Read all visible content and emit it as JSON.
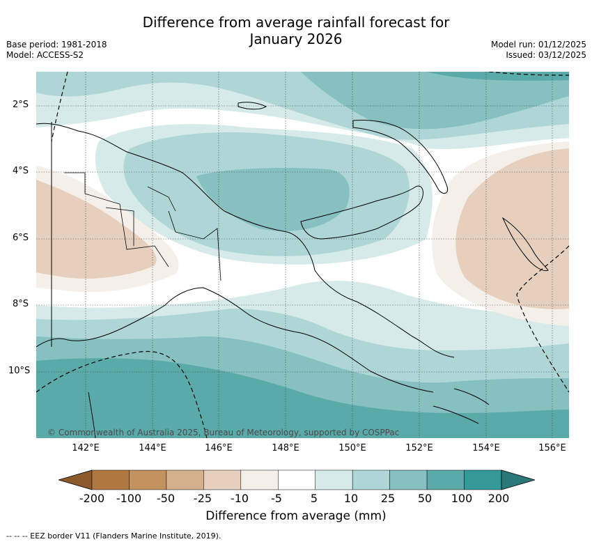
{
  "title": "Difference from average rainfall forecast for January 2026",
  "title_line1": "Difference from average rainfall forecast for",
  "title_line2": "January 2026",
  "meta_left": {
    "base_period": "Base period: 1981-2018",
    "model": "Model: ACCESS-S2"
  },
  "meta_right": {
    "model_run": "Model run: 01/12/2025",
    "issued": "Issued: 03/12/2025"
  },
  "map": {
    "lat_labels": [
      "2°S",
      "4°S",
      "6°S",
      "8°S",
      "10°S"
    ],
    "lon_labels": [
      "142°E",
      "144°E",
      "146°E",
      "148°E",
      "150°E",
      "152°E",
      "154°E",
      "156°E"
    ],
    "credit": "© Commonwealth of Australia 2025, Bureau of Meteorology, supported by COSPPac"
  },
  "legend": {
    "title": "Difference from average (mm)",
    "ticks": [
      "-200",
      "-100",
      "-50",
      "-25",
      "-10",
      "-5",
      "5",
      "10",
      "25",
      "50",
      "100",
      "200"
    ],
    "colors": [
      "#8c5a2a",
      "#b07840",
      "#c4925f",
      "#d4b08c",
      "#e6d0bd",
      "#f4efe9",
      "#ffffff",
      "#d6eaea",
      "#afd6d6",
      "#86c0c0",
      "#5aaaaa",
      "#359999",
      "#2a7878"
    ]
  },
  "footnote": "-- -- -- EEZ border V11 (Flanders Marine Institute, 2019)."
}
